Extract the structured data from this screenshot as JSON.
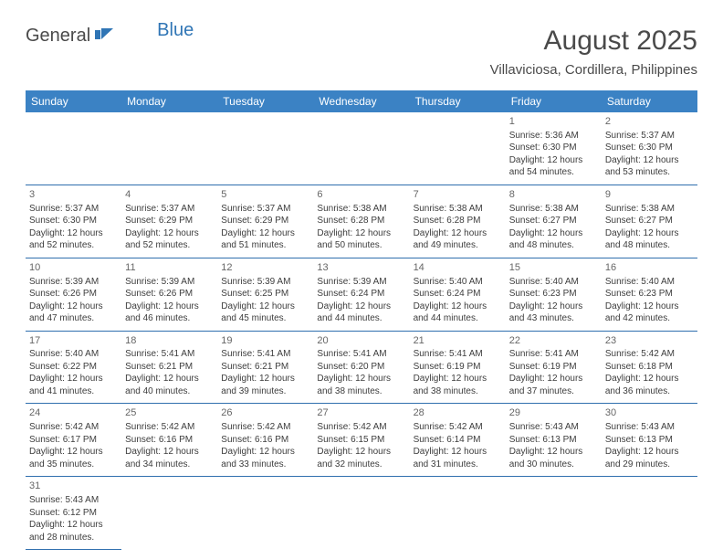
{
  "logo": {
    "part1": "General",
    "part2": "Blue"
  },
  "title": "August 2025",
  "subtitle": "Villaviciosa, Cordillera, Philippines",
  "colors": {
    "header_bg": "#3b82c4",
    "header_fg": "#ffffff",
    "row_border": "#2f6fae",
    "text": "#3d3d3d",
    "title_color": "#4a4a4a",
    "logo_blue": "#2f75b5"
  },
  "daysOfWeek": [
    "Sunday",
    "Monday",
    "Tuesday",
    "Wednesday",
    "Thursday",
    "Friday",
    "Saturday"
  ],
  "startWeekday": 5,
  "daysInMonth": 31,
  "days": {
    "1": {
      "sunrise": "5:36 AM",
      "sunset": "6:30 PM",
      "daylight": "12 hours and 54 minutes."
    },
    "2": {
      "sunrise": "5:37 AM",
      "sunset": "6:30 PM",
      "daylight": "12 hours and 53 minutes."
    },
    "3": {
      "sunrise": "5:37 AM",
      "sunset": "6:30 PM",
      "daylight": "12 hours and 52 minutes."
    },
    "4": {
      "sunrise": "5:37 AM",
      "sunset": "6:29 PM",
      "daylight": "12 hours and 52 minutes."
    },
    "5": {
      "sunrise": "5:37 AM",
      "sunset": "6:29 PM",
      "daylight": "12 hours and 51 minutes."
    },
    "6": {
      "sunrise": "5:38 AM",
      "sunset": "6:28 PM",
      "daylight": "12 hours and 50 minutes."
    },
    "7": {
      "sunrise": "5:38 AM",
      "sunset": "6:28 PM",
      "daylight": "12 hours and 49 minutes."
    },
    "8": {
      "sunrise": "5:38 AM",
      "sunset": "6:27 PM",
      "daylight": "12 hours and 48 minutes."
    },
    "9": {
      "sunrise": "5:38 AM",
      "sunset": "6:27 PM",
      "daylight": "12 hours and 48 minutes."
    },
    "10": {
      "sunrise": "5:39 AM",
      "sunset": "6:26 PM",
      "daylight": "12 hours and 47 minutes."
    },
    "11": {
      "sunrise": "5:39 AM",
      "sunset": "6:26 PM",
      "daylight": "12 hours and 46 minutes."
    },
    "12": {
      "sunrise": "5:39 AM",
      "sunset": "6:25 PM",
      "daylight": "12 hours and 45 minutes."
    },
    "13": {
      "sunrise": "5:39 AM",
      "sunset": "6:24 PM",
      "daylight": "12 hours and 44 minutes."
    },
    "14": {
      "sunrise": "5:40 AM",
      "sunset": "6:24 PM",
      "daylight": "12 hours and 44 minutes."
    },
    "15": {
      "sunrise": "5:40 AM",
      "sunset": "6:23 PM",
      "daylight": "12 hours and 43 minutes."
    },
    "16": {
      "sunrise": "5:40 AM",
      "sunset": "6:23 PM",
      "daylight": "12 hours and 42 minutes."
    },
    "17": {
      "sunrise": "5:40 AM",
      "sunset": "6:22 PM",
      "daylight": "12 hours and 41 minutes."
    },
    "18": {
      "sunrise": "5:41 AM",
      "sunset": "6:21 PM",
      "daylight": "12 hours and 40 minutes."
    },
    "19": {
      "sunrise": "5:41 AM",
      "sunset": "6:21 PM",
      "daylight": "12 hours and 39 minutes."
    },
    "20": {
      "sunrise": "5:41 AM",
      "sunset": "6:20 PM",
      "daylight": "12 hours and 38 minutes."
    },
    "21": {
      "sunrise": "5:41 AM",
      "sunset": "6:19 PM",
      "daylight": "12 hours and 38 minutes."
    },
    "22": {
      "sunrise": "5:41 AM",
      "sunset": "6:19 PM",
      "daylight": "12 hours and 37 minutes."
    },
    "23": {
      "sunrise": "5:42 AM",
      "sunset": "6:18 PM",
      "daylight": "12 hours and 36 minutes."
    },
    "24": {
      "sunrise": "5:42 AM",
      "sunset": "6:17 PM",
      "daylight": "12 hours and 35 minutes."
    },
    "25": {
      "sunrise": "5:42 AM",
      "sunset": "6:16 PM",
      "daylight": "12 hours and 34 minutes."
    },
    "26": {
      "sunrise": "5:42 AM",
      "sunset": "6:16 PM",
      "daylight": "12 hours and 33 minutes."
    },
    "27": {
      "sunrise": "5:42 AM",
      "sunset": "6:15 PM",
      "daylight": "12 hours and 32 minutes."
    },
    "28": {
      "sunrise": "5:42 AM",
      "sunset": "6:14 PM",
      "daylight": "12 hours and 31 minutes."
    },
    "29": {
      "sunrise": "5:43 AM",
      "sunset": "6:13 PM",
      "daylight": "12 hours and 30 minutes."
    },
    "30": {
      "sunrise": "5:43 AM",
      "sunset": "6:13 PM",
      "daylight": "12 hours and 29 minutes."
    },
    "31": {
      "sunrise": "5:43 AM",
      "sunset": "6:12 PM",
      "daylight": "12 hours and 28 minutes."
    }
  },
  "labels": {
    "sunrise": "Sunrise:",
    "sunset": "Sunset:",
    "daylight": "Daylight:"
  }
}
